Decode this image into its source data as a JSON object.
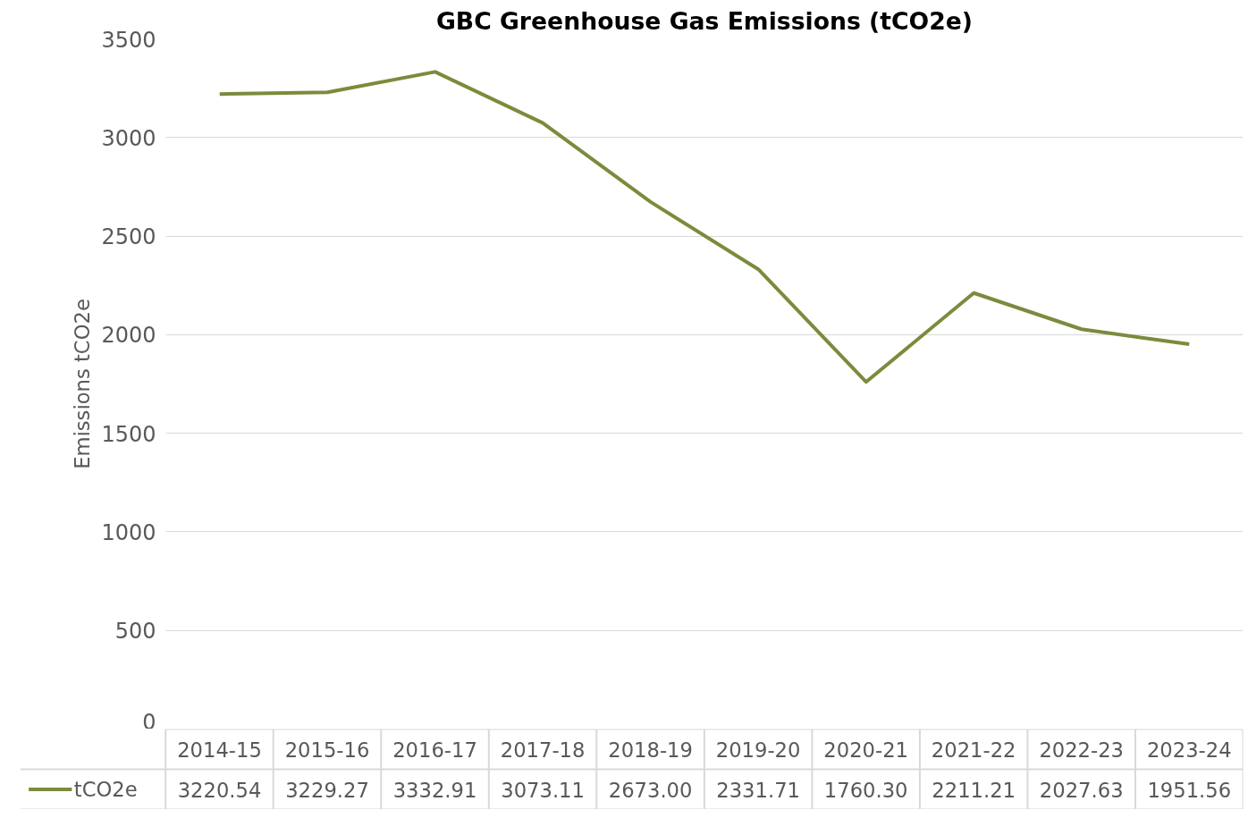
{
  "chart_data": {
    "type": "line",
    "title": "GBC Greenhouse Gas Emissions (tCO2e)",
    "ylabel": "Emissions tCO2e",
    "categories": [
      "2014-15",
      "2015-16",
      "2016-17",
      "2017-18",
      "2018-19",
      "2019-20",
      "2020-21",
      "2021-22",
      "2022-23",
      "2023-24"
    ],
    "series": [
      {
        "name": "tCO2e",
        "color": "#7a8c3c",
        "values": [
          3220.54,
          3229.27,
          3332.91,
          3073.11,
          2673.0,
          2331.71,
          1760.3,
          2211.21,
          2027.63,
          1951.56
        ],
        "value_labels": [
          "3220.54",
          "3229.27",
          "3332.91",
          "3073.11",
          "2673.00",
          "2331.71",
          "1760.30",
          "2211.21",
          "2027.63",
          "1951.56"
        ]
      }
    ],
    "ylim": [
      0,
      3500
    ],
    "yticks": [
      0,
      500,
      1000,
      1500,
      2000,
      2500,
      3000,
      3500
    ],
    "grid": "y",
    "marker": "none",
    "line_style": "solid",
    "legend": "bottom left"
  }
}
